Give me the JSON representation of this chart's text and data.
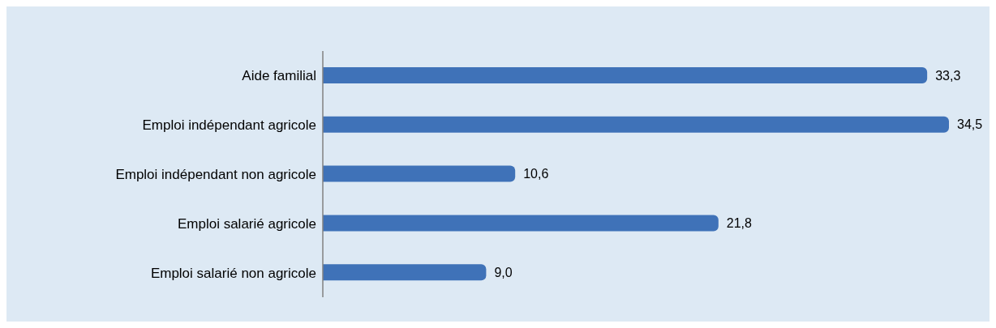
{
  "chart_data": {
    "type": "bar",
    "orientation": "horizontal",
    "categories": [
      "Aide familial",
      "Emploi indépendant agricole",
      "Emploi indépendant non agricole",
      "Emploi salarié agricole",
      "Emploi salarié non agricole"
    ],
    "values": [
      33.3,
      34.5,
      10.6,
      21.8,
      9.0
    ],
    "value_labels": [
      "33,3",
      "34,5",
      "10,6",
      "21,8",
      "9,0"
    ],
    "color": "#3f72b8"
  }
}
